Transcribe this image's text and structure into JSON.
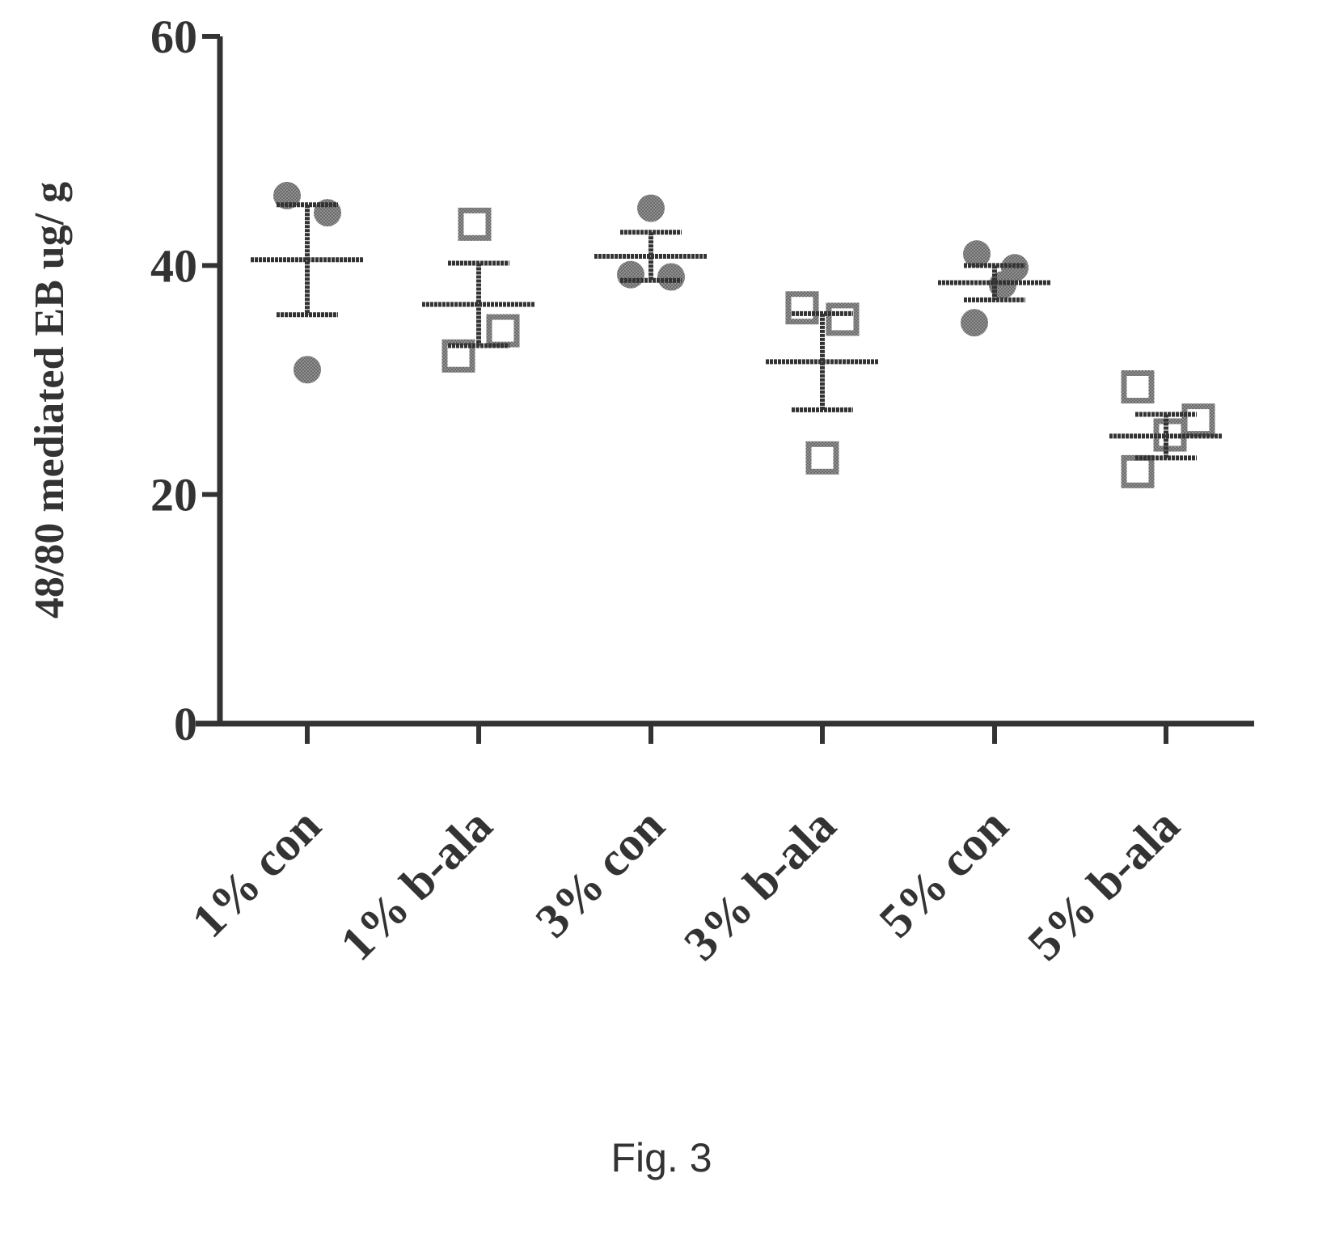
{
  "figure": {
    "caption": "Fig. 3"
  },
  "chart_data": {
    "type": "scatter",
    "title": "",
    "xlabel": "",
    "ylabel": "48/80 mediated EB ug/ g",
    "ylim": [
      0,
      60
    ],
    "y_ticks": [
      0,
      20,
      40,
      60
    ],
    "grid": false,
    "legend": "none",
    "categories": [
      "1% con",
      "1% b-ala",
      "3% con",
      "3% b-ala",
      "5% con",
      "5% b-ala"
    ],
    "groups": [
      {
        "category": "1% con",
        "marker": "circle",
        "values": [
          46.1,
          44.6,
          30.9
        ],
        "mean": 40.5,
        "error_upper": 45.3,
        "error_lower": 35.7
      },
      {
        "category": "1% b-ala",
        "marker": "square",
        "values": [
          43.6,
          34.3,
          32.1
        ],
        "mean": 36.6,
        "error_upper": 40.2,
        "error_lower": 33.0
      },
      {
        "category": "3% con",
        "marker": "circle",
        "values": [
          45.0,
          39.2,
          39.0
        ],
        "mean": 40.8,
        "error_upper": 42.9,
        "error_lower": 38.7
      },
      {
        "category": "3% b-ala",
        "marker": "square",
        "values": [
          36.3,
          35.3,
          23.2
        ],
        "mean": 31.6,
        "error_upper": 35.8,
        "error_lower": 27.4
      },
      {
        "category": "5% con",
        "marker": "circle",
        "values": [
          41.0,
          39.8,
          38.3,
          35.0
        ],
        "mean": 38.5,
        "error_upper": 40.0,
        "error_lower": 37.0
      },
      {
        "category": "5% b-ala",
        "marker": "square",
        "values": [
          29.4,
          26.5,
          25.2,
          22.0
        ],
        "mean": 25.1,
        "error_upper": 27.0,
        "error_lower": 23.2
      }
    ],
    "colors": {
      "ink": "#333333",
      "background": "#ffffff"
    }
  }
}
